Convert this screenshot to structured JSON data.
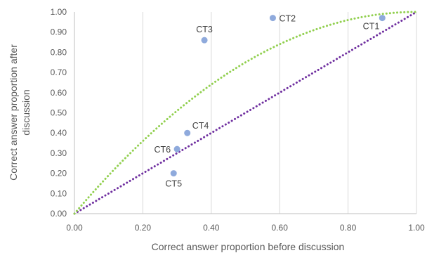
{
  "chart_data": {
    "type": "scatter",
    "title": "",
    "xlabel": "Correct answer proportion before discussion",
    "ylabel_lines": [
      "Correct answer proportion after",
      "discussion"
    ],
    "xlim": [
      0,
      1
    ],
    "ylim": [
      0,
      1
    ],
    "x_ticks": [
      0.0,
      0.2,
      0.4,
      0.6,
      0.8,
      1.0
    ],
    "x_tick_labels": [
      "0.00",
      "0.20",
      "0.40",
      "0.60",
      "0.80",
      "1.00"
    ],
    "y_ticks": [
      0.0,
      0.1,
      0.2,
      0.3,
      0.4,
      0.5,
      0.6,
      0.7,
      0.8,
      0.9,
      1.0
    ],
    "y_tick_labels": [
      "0.00",
      "0.10",
      "0.20",
      "0.30",
      "0.40",
      "0.50",
      "0.60",
      "0.70",
      "0.80",
      "0.90",
      "1.00"
    ],
    "grid": "vertical",
    "points": [
      {
        "label": "CT1",
        "x": 0.9,
        "y": 0.97,
        "label_side": "left-below"
      },
      {
        "label": "CT2",
        "x": 0.58,
        "y": 0.97,
        "label_side": "right"
      },
      {
        "label": "CT3",
        "x": 0.38,
        "y": 0.86,
        "label_side": "above"
      },
      {
        "label": "CT4",
        "x": 0.33,
        "y": 0.4,
        "label_side": "right-above"
      },
      {
        "label": "CT5",
        "x": 0.29,
        "y": 0.2,
        "label_side": "below"
      },
      {
        "label": "CT6",
        "x": 0.3,
        "y": 0.32,
        "label_side": "left"
      }
    ],
    "reference_lines": [
      {
        "kind": "diagonal",
        "equation": "y = x",
        "color": "#7030A0",
        "style": "dotted"
      },
      {
        "kind": "curve",
        "equation": "y = 2x - x^2",
        "color": "#92D050",
        "style": "dotted"
      }
    ],
    "point_color": "#8FAADC"
  }
}
